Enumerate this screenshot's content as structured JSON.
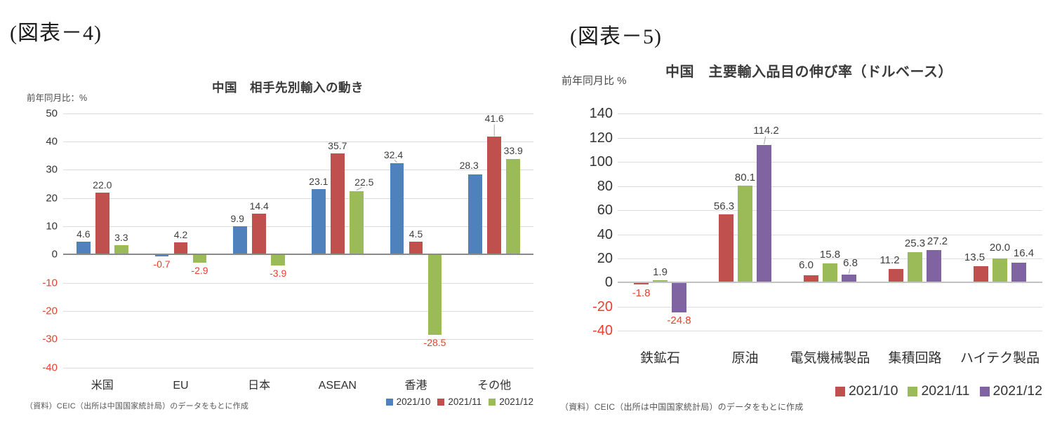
{
  "figure4": {
    "caption": "(図表－4)"
  },
  "figure5": {
    "caption": "(図表－5)"
  },
  "colors": {
    "negative_label": "#e8402d",
    "grid": "#dcdcdc",
    "zero_axis_fig4": "#8a8a8a",
    "zero_axis_fig5": "#c2c2c2",
    "tick_text": "#333333",
    "value_text": "#3f3f3f",
    "leader_line": "#a6a6a6"
  },
  "chart_data": [
    {
      "type": "bar",
      "title": "中国　相手先別輸入の動き",
      "unit_label": "前年同月比：%",
      "categories": [
        "米国",
        "EU",
        "日本",
        "ASEAN",
        "香港",
        "その他"
      ],
      "series": [
        {
          "name": "2021/10",
          "color": "#4F81BD",
          "values": [
            4.6,
            -0.7,
            9.9,
            23.1,
            32.4,
            28.3
          ]
        },
        {
          "name": "2021/11",
          "color": "#C0504D",
          "values": [
            22.0,
            4.2,
            14.4,
            35.7,
            4.5,
            41.6
          ]
        },
        {
          "name": "2021/12",
          "color": "#9BBB59",
          "values": [
            3.3,
            -2.9,
            -3.9,
            22.5,
            -28.5,
            33.9
          ]
        }
      ],
      "ylim": [
        -40,
        50
      ],
      "ytick_step": 10,
      "grid": true,
      "legend_position": "bottom-right",
      "value_labels": true,
      "source": "（資料）CEIC（出所は中国国家統計局）のデータをもとに作成"
    },
    {
      "type": "bar",
      "title": "中国　主要輸入品目の伸び率（ドルベース）",
      "unit_label": "前年同月比 %",
      "categories": [
        "鉄鉱石",
        "原油",
        "電気機械製品",
        "集積回路",
        "ハイテク製品"
      ],
      "series": [
        {
          "name": "2021/10",
          "color": "#C0504D",
          "values": [
            -1.8,
            56.3,
            6.0,
            11.2,
            13.5
          ]
        },
        {
          "name": "2021/11",
          "color": "#9BBB59",
          "values": [
            1.9,
            80.1,
            15.8,
            25.3,
            20.0
          ]
        },
        {
          "name": "2021/12",
          "color": "#8064A2",
          "values": [
            -24.8,
            114.2,
            6.8,
            27.2,
            16.4
          ]
        }
      ],
      "ylim": [
        -40,
        140
      ],
      "ytick_step": 20,
      "grid": true,
      "legend_position": "bottom-right",
      "value_labels": true,
      "source": "（資料）CEIC（出所は中国国家統計局）のデータをもとに作成"
    }
  ]
}
